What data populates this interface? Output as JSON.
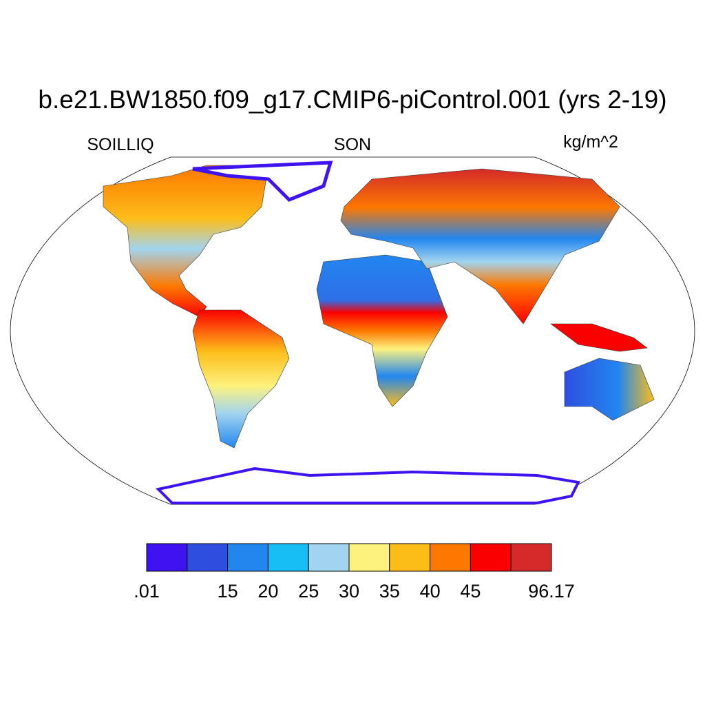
{
  "title": "b.e21.BW1850.f09_g17.CMIP6-piControl.001 (yrs 2-19)",
  "left_label": "SOILLIQ",
  "center_label": "SON",
  "right_label": "kg/m^2",
  "colorbar": {
    "colors": [
      "#3f12f2",
      "#2f4ee0",
      "#2286ef",
      "#17bdf5",
      "#a2d4ef",
      "#fdf27e",
      "#fdbd19",
      "#fd7800",
      "#fb0000",
      "#d42a2a"
    ],
    "labels": [
      ".01",
      null,
      "15",
      "20",
      "25",
      "30",
      "35",
      "40",
      "45",
      null,
      "96.17"
    ]
  }
}
